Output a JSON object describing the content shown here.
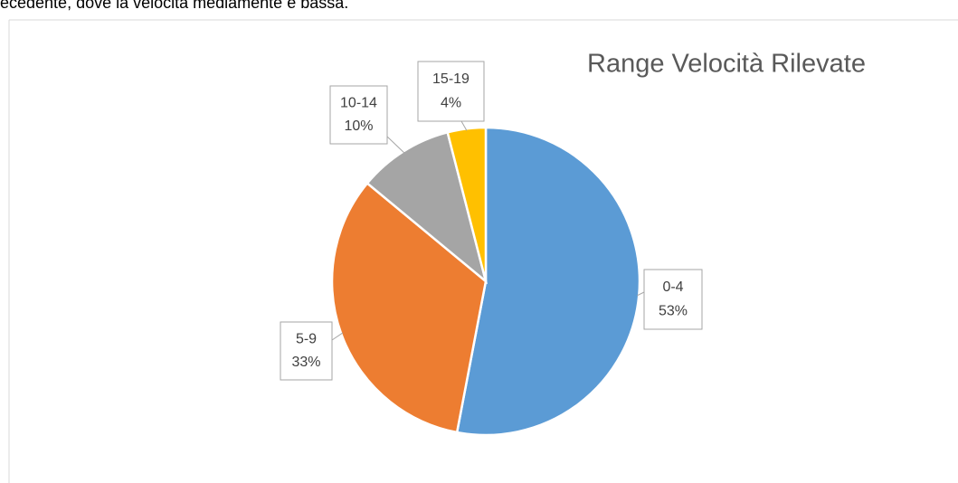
{
  "document_text": "ecedente, dove la velocità mediamente è bassa.",
  "chart_data": {
    "type": "pie",
    "title": "Range Velocità Rilevate",
    "categories": [
      "0-4",
      "5-9",
      "10-14",
      "15-19"
    ],
    "values": [
      53,
      33,
      10,
      4
    ],
    "value_labels": [
      "53%",
      "33%",
      "10%",
      "4%"
    ],
    "colors": [
      "#5b9bd5",
      "#ed7d31",
      "#a5a5a5",
      "#ffc000"
    ]
  }
}
